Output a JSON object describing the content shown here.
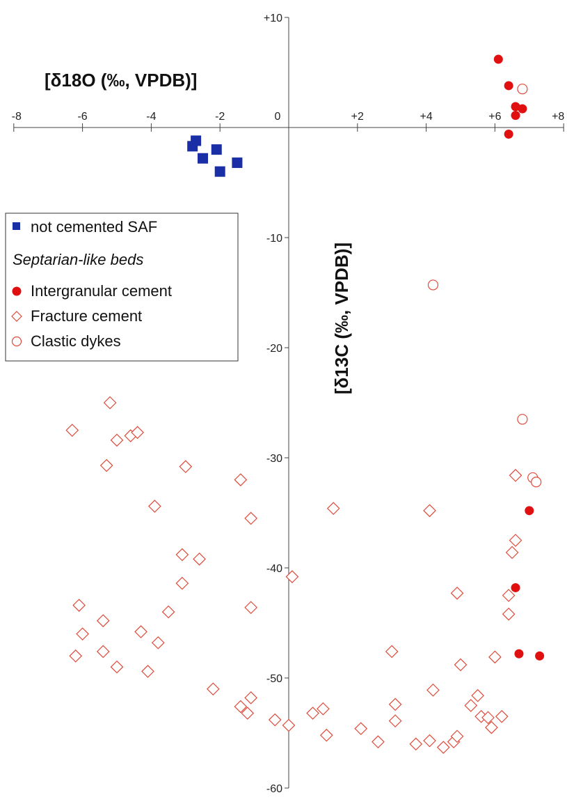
{
  "chart_data": {
    "type": "scatter",
    "x_label": "[δ18O (‰, VPDB)]",
    "y_label": "[δ13C (‰, VPDB)]",
    "xlim": [
      -8,
      8
    ],
    "ylim": [
      -60,
      10
    ],
    "x_ticks": [
      "-8",
      "-6",
      "-4",
      "-2",
      "0",
      "+2",
      "+4",
      "+6",
      "+8"
    ],
    "x_tick_values": [
      -8,
      -6,
      -4,
      -2,
      0,
      2,
      4,
      6,
      8
    ],
    "y_ticks": [
      "+10",
      "-10",
      "-20",
      "-30",
      "-40",
      "-50",
      "-60"
    ],
    "y_tick_values": [
      10,
      -10,
      -20,
      -30,
      -40,
      -50,
      -60
    ],
    "legend": {
      "placement": "left",
      "subheading": "Septarian-like beds"
    },
    "series": [
      {
        "name": "not cemented SAF",
        "marker": "square-filled",
        "color": "#1a2fa6",
        "points": [
          [
            -2.8,
            -1.7
          ],
          [
            -2.7,
            -1.2
          ],
          [
            -2.5,
            -2.8
          ],
          [
            -2.1,
            -2.0
          ],
          [
            -2.0,
            -4.0
          ],
          [
            -1.5,
            -3.2
          ]
        ]
      },
      {
        "name": "Intergranular cement",
        "marker": "circle-filled",
        "color": "#e01010",
        "points": [
          [
            6.1,
            6.2
          ],
          [
            6.4,
            3.8
          ],
          [
            6.6,
            1.9
          ],
          [
            6.8,
            1.7
          ],
          [
            6.6,
            1.1
          ],
          [
            6.4,
            -0.6
          ],
          [
            7.0,
            -34.8
          ],
          [
            6.6,
            -41.8
          ],
          [
            6.7,
            -47.8
          ],
          [
            7.3,
            -48.0
          ]
        ]
      },
      {
        "name": "Fracture cement",
        "marker": "diamond-open",
        "color": "#e04a3a",
        "points": [
          [
            -6.3,
            -27.5
          ],
          [
            -5.2,
            -25.0
          ],
          [
            -5.0,
            -28.4
          ],
          [
            -4.6,
            -28.0
          ],
          [
            -4.4,
            -27.7
          ],
          [
            -5.3,
            -30.7
          ],
          [
            -3.9,
            -34.4
          ],
          [
            -3.0,
            -30.8
          ],
          [
            -1.4,
            -32.0
          ],
          [
            -1.1,
            -35.5
          ],
          [
            1.3,
            -34.6
          ],
          [
            4.1,
            -34.8
          ],
          [
            -3.1,
            -38.8
          ],
          [
            -2.6,
            -39.2
          ],
          [
            -3.1,
            -41.4
          ],
          [
            0.1,
            -40.8
          ],
          [
            -1.1,
            -43.6
          ],
          [
            -3.5,
            -44.0
          ],
          [
            -6.1,
            -43.4
          ],
          [
            -6.0,
            -46.0
          ],
          [
            -5.4,
            -44.8
          ],
          [
            -4.3,
            -45.8
          ],
          [
            -3.8,
            -46.8
          ],
          [
            -5.4,
            -47.6
          ],
          [
            -6.2,
            -48.0
          ],
          [
            -5.0,
            -49.0
          ],
          [
            -4.1,
            -49.4
          ],
          [
            -2.2,
            -51.0
          ],
          [
            -1.4,
            -52.6
          ],
          [
            -1.2,
            -53.2
          ],
          [
            -1.1,
            -51.8
          ],
          [
            -0.4,
            -53.8
          ],
          [
            0.0,
            -54.3
          ],
          [
            0.7,
            -53.2
          ],
          [
            1.0,
            -52.8
          ],
          [
            1.1,
            -55.2
          ],
          [
            2.1,
            -54.6
          ],
          [
            2.6,
            -55.8
          ],
          [
            3.0,
            -47.6
          ],
          [
            3.1,
            -53.9
          ],
          [
            3.1,
            -52.4
          ],
          [
            3.7,
            -56.0
          ],
          [
            4.1,
            -55.7
          ],
          [
            4.2,
            -51.1
          ],
          [
            4.5,
            -56.3
          ],
          [
            4.8,
            -55.8
          ],
          [
            4.9,
            -55.3
          ],
          [
            4.9,
            -42.3
          ],
          [
            5.0,
            -48.8
          ],
          [
            5.3,
            -52.5
          ],
          [
            5.5,
            -51.6
          ],
          [
            5.6,
            -53.5
          ],
          [
            5.8,
            -53.6
          ],
          [
            5.9,
            -54.5
          ],
          [
            6.0,
            -48.1
          ],
          [
            6.2,
            -53.5
          ],
          [
            6.4,
            -44.2
          ],
          [
            6.4,
            -42.5
          ],
          [
            6.5,
            -38.6
          ],
          [
            6.6,
            -37.5
          ],
          [
            6.6,
            -31.6
          ]
        ]
      },
      {
        "name": "Clastic dykes",
        "marker": "circle-open",
        "color": "#e04a3a",
        "points": [
          [
            6.8,
            3.5
          ],
          [
            4.2,
            -14.3
          ],
          [
            6.8,
            -26.5
          ],
          [
            7.1,
            -31.8
          ],
          [
            7.2,
            -32.2
          ]
        ]
      }
    ]
  }
}
